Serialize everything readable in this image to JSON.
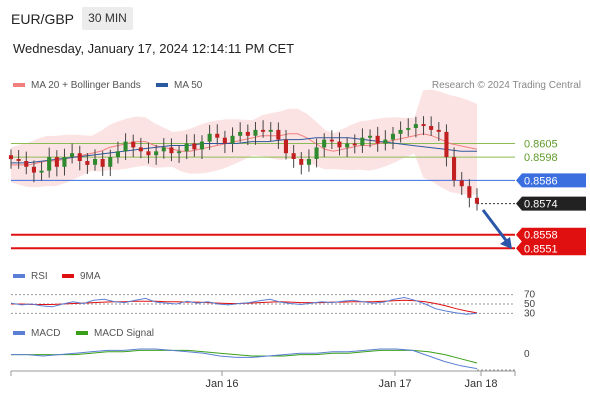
{
  "header": {
    "pair": "EUR/GBP",
    "timeframe": "30 MIN",
    "datetime": "Wednesday, January 17, 2024 12:14:11 PM CET"
  },
  "credit": "Research © 2024 Trading Central",
  "colors": {
    "ma20": "#f08080",
    "ma50": "#2c5aa0",
    "resistance": "#8bbb55",
    "pivot": "#3b6fe0",
    "support": "#e01010",
    "current": "#222222",
    "rsi": "#5b7fd4",
    "rsi_ma": "#e01010",
    "macd": "#5b7fd4",
    "macd_signal": "#3aa01a"
  },
  "chart_data": [
    {
      "type": "candlestick",
      "legend": [
        {
          "name": "MA 20 + Bollinger Bands",
          "color": "#f08080"
        },
        {
          "name": "MA 50",
          "color": "#2c5aa0"
        }
      ],
      "x_ticks": [
        "Jan 16",
        "Jan 17",
        "Jan 18"
      ],
      "ylim": [
        0.8546,
        0.863
      ],
      "levels": [
        {
          "label": "0.8605",
          "value": 0.8605,
          "kind": "resistance"
        },
        {
          "label": "0.8598",
          "value": 0.8598,
          "kind": "resistance"
        },
        {
          "label": "0.8586",
          "value": 0.8586,
          "kind": "pivot"
        },
        {
          "label": "0.8574",
          "value": 0.8574,
          "kind": "current"
        },
        {
          "label": "0.8558",
          "value": 0.8558,
          "kind": "support"
        },
        {
          "label": "0.8551",
          "value": 0.8551,
          "kind": "support"
        }
      ],
      "close_series": [
        0.8597,
        0.8596,
        0.8593,
        0.859,
        0.8591,
        0.8598,
        0.8593,
        0.8598,
        0.86,
        0.8596,
        0.8594,
        0.8597,
        0.8593,
        0.8598,
        0.8601,
        0.8606,
        0.8603,
        0.8601,
        0.8599,
        0.8601,
        0.8603,
        0.86,
        0.8601,
        0.8605,
        0.8602,
        0.8606,
        0.861,
        0.8608,
        0.8605,
        0.8609,
        0.8611,
        0.8609,
        0.8612,
        0.8611,
        0.8612,
        0.8607,
        0.86,
        0.8597,
        0.8594,
        0.8597,
        0.8603,
        0.8607,
        0.8606,
        0.8603,
        0.8605,
        0.8604,
        0.8608,
        0.8609,
        0.8605,
        0.8607,
        0.861,
        0.8612,
        0.8613,
        0.8615,
        0.8614,
        0.8612,
        0.8611,
        0.8598,
        0.8586,
        0.8583,
        0.8577,
        0.8574
      ],
      "ma20": [
        0.8594,
        0.8594,
        0.8594,
        0.8595,
        0.8596,
        0.8596,
        0.8597,
        0.8598,
        0.8599,
        0.86,
        0.8601,
        0.8603,
        0.8604,
        0.8605,
        0.8606,
        0.8606,
        0.8604,
        0.8603,
        0.8602,
        0.8601,
        0.8601,
        0.8602,
        0.8603,
        0.8604,
        0.8605,
        0.8606,
        0.8607,
        0.8608,
        0.8609,
        0.8609,
        0.8609,
        0.861,
        0.861,
        0.8608,
        0.8605,
        0.8602,
        0.8601,
        0.8602,
        0.8603,
        0.8604,
        0.8604,
        0.8605,
        0.8606,
        0.8607,
        0.8608,
        0.8609,
        0.861,
        0.8609,
        0.8607,
        0.8605,
        0.8604,
        0.8603,
        0.8602
      ],
      "ma50": [
        0.8595,
        0.8595,
        0.8596,
        0.8597,
        0.8598,
        0.8599,
        0.86,
        0.8601,
        0.8602,
        0.8603,
        0.8604,
        0.8604,
        0.8605,
        0.8605,
        0.8605,
        0.8606,
        0.8606,
        0.8607,
        0.8607,
        0.8608,
        0.8608,
        0.8608,
        0.8607,
        0.8606,
        0.8605,
        0.8604,
        0.8603,
        0.8602,
        0.8601,
        0.8601
      ]
    },
    {
      "type": "line",
      "legend": [
        {
          "name": "RSI",
          "color": "#5b7fd4"
        },
        {
          "name": "9MA",
          "color": "#e01010"
        }
      ],
      "levels": [
        "70",
        "50",
        "30"
      ],
      "ylim": [
        20,
        80
      ],
      "series": [
        {
          "name": "RSI",
          "values": [
            52,
            48,
            50,
            46,
            44,
            50,
            55,
            51,
            58,
            60,
            55,
            53,
            58,
            62,
            54,
            52,
            50,
            56,
            52,
            55,
            50,
            48,
            51,
            53,
            57,
            60,
            54,
            51,
            49,
            52,
            55,
            53,
            56,
            58,
            55,
            52,
            54,
            60,
            64,
            58,
            50,
            40,
            35,
            31,
            28,
            30
          ]
        },
        {
          "name": "9MA",
          "values": [
            50,
            50,
            49,
            49,
            49,
            50,
            51,
            52,
            53,
            54,
            55,
            55,
            56,
            56,
            56,
            55,
            55,
            54,
            54,
            53,
            52,
            51,
            51,
            52,
            53,
            54,
            55,
            54,
            53,
            53,
            53,
            54,
            54,
            55,
            55,
            55,
            56,
            57,
            58,
            57,
            55,
            51,
            46,
            40,
            35,
            31
          ]
        }
      ]
    },
    {
      "type": "line",
      "legend": [
        {
          "name": "MACD",
          "color": "#5b7fd4"
        },
        {
          "name": "MACD Signal",
          "color": "#3aa01a"
        }
      ],
      "levels": [
        "0"
      ],
      "ylim": [
        -0.0012,
        0.0008
      ],
      "series": [
        {
          "name": "MACD",
          "values": [
            -0.0001,
            -0.0001,
            -0.0002,
            -0.0001,
            0.0,
            0.0001,
            0.0002,
            0.0002,
            0.0003,
            0.0003,
            0.0002,
            0.0001,
            0.0,
            -0.0002,
            -0.0003,
            -0.0003,
            -0.0002,
            -0.0001,
            0.0,
            0.0,
            0.0001,
            0.0001,
            0.0002,
            0.0003,
            0.0003,
            0.0002,
            -0.0002,
            -0.0006,
            -0.0009,
            -0.0011
          ]
        },
        {
          "name": "MACD Signal",
          "values": [
            -0.0001,
            -0.0001,
            -0.0001,
            -0.0001,
            -0.0001,
            0.0,
            0.0001,
            0.0001,
            0.0002,
            0.0002,
            0.0002,
            0.0002,
            0.0001,
            0.0,
            -0.0001,
            -0.0002,
            -0.0002,
            -0.0002,
            -0.0001,
            -0.0001,
            0.0,
            0.0,
            0.0001,
            0.0002,
            0.0002,
            0.0002,
            0.0001,
            -0.0001,
            -0.0004,
            -0.0007
          ]
        }
      ]
    }
  ]
}
